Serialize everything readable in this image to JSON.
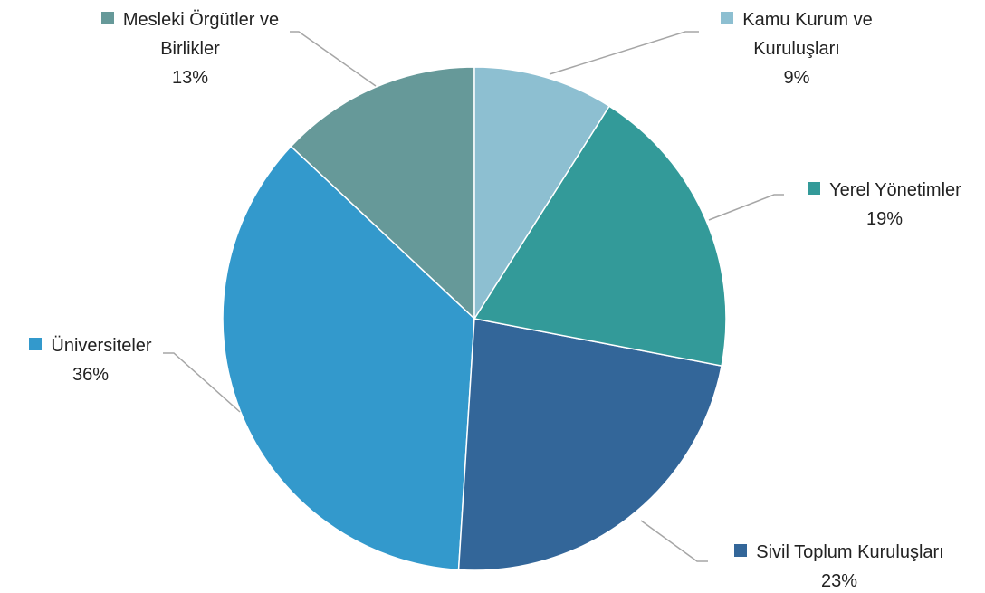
{
  "chart_data": {
    "type": "pie",
    "categories": [
      "Kamu Kurum ve\nKuruluşları",
      "Yerel Yönetimler",
      "Sivil Toplum Kuruluşları",
      "Üniversiteler",
      "Mesleki Örgütler ve\nBirlikler"
    ],
    "values": [
      9,
      19,
      23,
      36,
      13
    ],
    "value_labels": [
      "9%",
      "19%",
      "23%",
      "36%",
      "13%"
    ],
    "colors": [
      "#8dbfd1",
      "#339a99",
      "#336699",
      "#3399cc",
      "#669999"
    ]
  }
}
